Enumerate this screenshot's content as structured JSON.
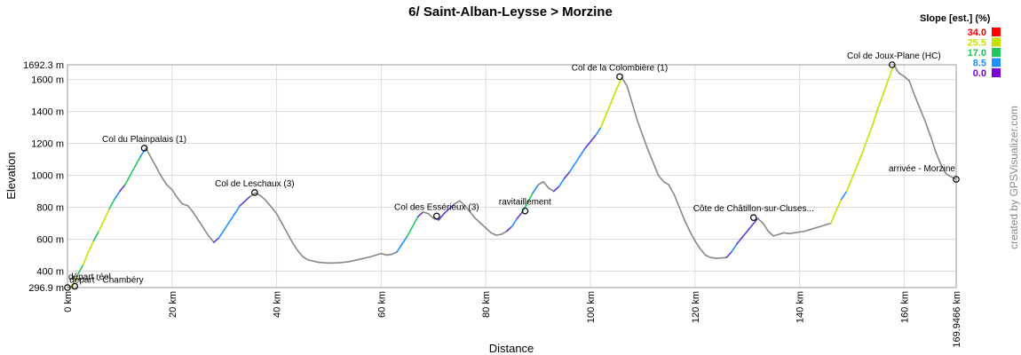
{
  "chart_data": {
    "type": "line",
    "title": "6/ Saint-Alban-Leysse > Morzine",
    "xlabel": "Distance",
    "ylabel": "Elevation",
    "xlim": [
      0,
      169.9466
    ],
    "ylim": [
      296.9,
      1692.3
    ],
    "x_ticks": [
      0,
      20,
      40,
      60,
      80,
      100,
      120,
      140,
      160
    ],
    "x_tick_labels": [
      "0 km",
      "20 km",
      "40 km",
      "60 km",
      "80 km",
      "100 km",
      "120 km",
      "140 km",
      "160 km"
    ],
    "x_end_label": "169.9466 km",
    "y_ticks": [
      400,
      600,
      800,
      1000,
      1200,
      1400,
      1600
    ],
    "y_tick_labels": [
      "400 m",
      "600 m",
      "800 m",
      "1000 m",
      "1200 m",
      "1400 m",
      "1600 m"
    ],
    "y_min_label": "296.9 m",
    "y_max_label": "1692.3 m",
    "grid": true,
    "series": [
      {
        "x": [
          0,
          1,
          2,
          3,
          4,
          5,
          6,
          7,
          8,
          9,
          10,
          11,
          12,
          13,
          14,
          15,
          16,
          17,
          18,
          19,
          20,
          21,
          22,
          23,
          24,
          25,
          26,
          27,
          28,
          29,
          30,
          31,
          32,
          33,
          34,
          35,
          36,
          37,
          38,
          39,
          40,
          41,
          42,
          43,
          44,
          45,
          46,
          48,
          50,
          52,
          54,
          56,
          58,
          60,
          61,
          62,
          63,
          64,
          65,
          66,
          67,
          68,
          69,
          70,
          71,
          72,
          73,
          74,
          75,
          76,
          77,
          78,
          79,
          80,
          81,
          82,
          83,
          84,
          85,
          86,
          87,
          88,
          89,
          90,
          91,
          92,
          93,
          94,
          95,
          96,
          97,
          98,
          99,
          100,
          101,
          102,
          103,
          104,
          105,
          106,
          107,
          108,
          109,
          110,
          111,
          112,
          113,
          114,
          115,
          116,
          117,
          118,
          119,
          120,
          121,
          122,
          123,
          124,
          125,
          126,
          127,
          128,
          129,
          130,
          131,
          132,
          133,
          134,
          135,
          136,
          137,
          138,
          139,
          140,
          141,
          142,
          143,
          144,
          145,
          146,
          147,
          148,
          149,
          150,
          151,
          152,
          153,
          154,
          155,
          156,
          157,
          158,
          159,
          160,
          161,
          162,
          163,
          164,
          165,
          166,
          167,
          168,
          169,
          169.9466
        ],
        "y": [
          296.9,
          305,
          380,
          440,
          520,
          590,
          650,
          720,
          790,
          850,
          900,
          940,
          1000,
          1060,
          1120,
          1170,
          1110,
          1050,
          990,
          940,
          910,
          860,
          820,
          810,
          770,
          720,
          670,
          620,
          580,
          610,
          660,
          710,
          760,
          810,
          840,
          870,
          890,
          870,
          840,
          800,
          760,
          700,
          640,
          580,
          530,
          490,
          470,
          455,
          450,
          452,
          460,
          475,
          490,
          510,
          500,
          505,
          520,
          570,
          620,
          680,
          740,
          770,
          760,
          730,
          720,
          760,
          790,
          820,
          840,
          810,
          770,
          730,
          700,
          670,
          640,
          625,
          630,
          650,
          680,
          730,
          770,
          830,
          890,
          940,
          960,
          920,
          900,
          930,
          980,
          1020,
          1070,
          1120,
          1170,
          1210,
          1250,
          1300,
          1380,
          1460,
          1540,
          1612,
          1560,
          1450,
          1340,
          1250,
          1160,
          1080,
          1000,
          960,
          940,
          880,
          800,
          720,
          650,
          590,
          540,
          500,
          485,
          480,
          482,
          485,
          520,
          570,
          610,
          650,
          690,
          730,
          700,
          650,
          620,
          630,
          640,
          635,
          640,
          645,
          650,
          660,
          670,
          680,
          690,
          700,
          780,
          850,
          900,
          980,
          1060,
          1140,
          1230,
          1320,
          1420,
          1510,
          1600,
          1692.3,
          1640,
          1620,
          1590,
          1500,
          1420,
          1340,
          1250,
          1150,
          1070,
          1010,
          990,
          975
        ]
      }
    ],
    "annotations": [
      {
        "label": "départ réel",
        "x": 0,
        "y": 296.9
      },
      {
        "label": "départ - Chambéry",
        "x": 1.4,
        "y": 305
      },
      {
        "label": "Col du Plainpalais (1)",
        "x": 14.7,
        "y": 1170
      },
      {
        "label": "Col de Leschaux (3)",
        "x": 35.8,
        "y": 892
      },
      {
        "label": "Col des Essérieux (3)",
        "x": 70.6,
        "y": 745
      },
      {
        "label": "ravitaillement",
        "x": 87.5,
        "y": 777
      },
      {
        "label": "Col de la Colombière (1)",
        "x": 105.6,
        "y": 1618
      },
      {
        "label": "Côte de Châtillon-sur-Cluses...",
        "x": 131.2,
        "y": 735
      },
      {
        "label": "Col de Joux-Plane (HC)",
        "x": 157.7,
        "y": 1692.3
      },
      {
        "label": "arrivée - Morzine",
        "x": 169.9466,
        "y": 975
      }
    ],
    "legend": {
      "title": "Slope [est.] (%)",
      "placement": "top-right",
      "items": [
        {
          "value": "34.0",
          "color": "#ff0000"
        },
        {
          "value": "25.5",
          "color": "#c7e000"
        },
        {
          "value": "17.0",
          "color": "#1fc85a"
        },
        {
          "value": "8.5",
          "color": "#1e90ff"
        },
        {
          "value": "0.0",
          "color": "#7a00d6"
        }
      ]
    },
    "line_colors": {
      "base": "#888888",
      "gentle": "#5a3fd0",
      "moderate": "#1e90ff",
      "steep": "#1fc85a",
      "steeper": "#c7e000"
    },
    "credit": "created by GPSVisualizer.com"
  }
}
